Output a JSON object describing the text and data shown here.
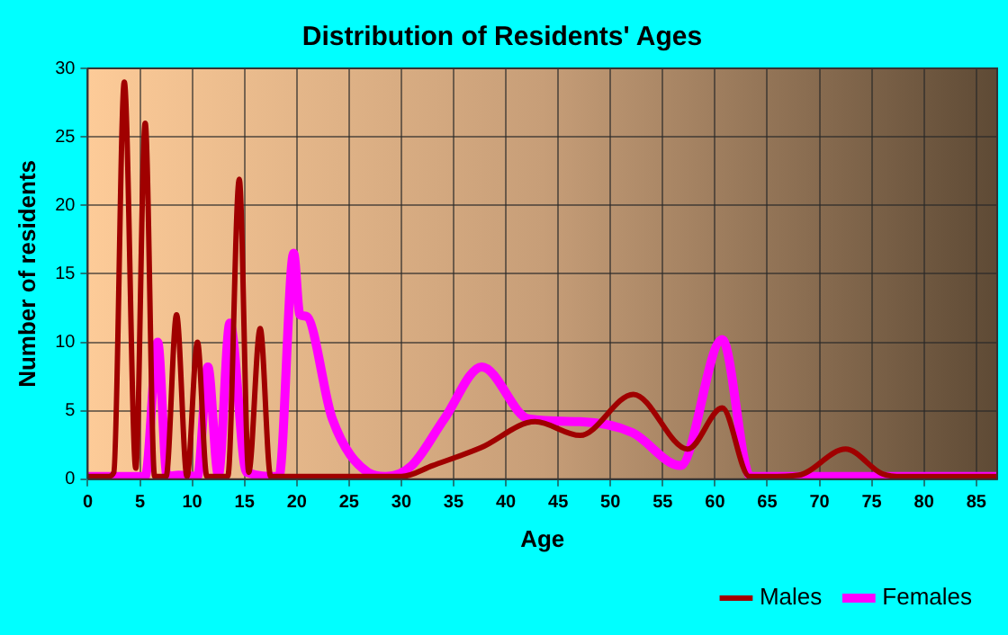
{
  "chart_data": {
    "type": "line",
    "title": "Distribution of Residents' Ages",
    "xlabel": "Age",
    "ylabel": "Number of residents",
    "xlim": [
      0,
      87
    ],
    "xticks": [
      0,
      5,
      10,
      15,
      20,
      25,
      30,
      35,
      40,
      45,
      50,
      55,
      60,
      65,
      70,
      75,
      80,
      85
    ],
    "ylim": [
      0,
      30
    ],
    "yticks": [
      0,
      5,
      10,
      15,
      20,
      25,
      30
    ],
    "grid": true,
    "legend": "bottom right",
    "marker": "none",
    "line_style": "solid",
    "series": [
      {
        "name": "Males",
        "color": "#a00000",
        "x": [
          0,
          2,
          2.5,
          3.5,
          4.6,
          5.5,
          6.4,
          7.5,
          8.5,
          9.5,
          10.5,
          11.4,
          13.4,
          14.5,
          15.4,
          16.5,
          17.5,
          19,
          30,
          33,
          37.6,
          42.8,
          47.1,
          52.2,
          57.4,
          60.7,
          63.3,
          65,
          68,
          72.5,
          76,
          78,
          87
        ],
        "values": [
          0.2,
          0.2,
          0.5,
          29,
          0.8,
          26,
          0.2,
          0.2,
          12,
          0.2,
          10,
          0.2,
          0.2,
          21.9,
          0.5,
          11,
          0.2,
          0.2,
          0.2,
          1,
          2.3,
          4.2,
          3.2,
          6.2,
          2.2,
          5.2,
          0.2,
          0.2,
          0.3,
          2.2,
          0.4,
          0.2,
          0.2
        ]
      },
      {
        "name": "Females",
        "color": "#ff00ff",
        "x": [
          0,
          5.5,
          6.7,
          7.6,
          8.7,
          10.5,
          11.5,
          12.5,
          13.6,
          15.2,
          18.3,
          19.7,
          20.3,
          20.9,
          23.4,
          26.8,
          28.5,
          31,
          34.1,
          37.7,
          42.2,
          47.1,
          52.1,
          56.7,
          60.7,
          63.4,
          87
        ],
        "values": [
          0.2,
          0.2,
          10,
          0.2,
          0.3,
          0.2,
          8.2,
          0.3,
          11.4,
          0.5,
          0.2,
          16.5,
          12,
          11.9,
          4.4,
          0.5,
          0.2,
          1,
          4.4,
          8.2,
          4.4,
          4.2,
          3.4,
          1,
          10.2,
          0.2,
          0.2
        ]
      }
    ]
  }
}
